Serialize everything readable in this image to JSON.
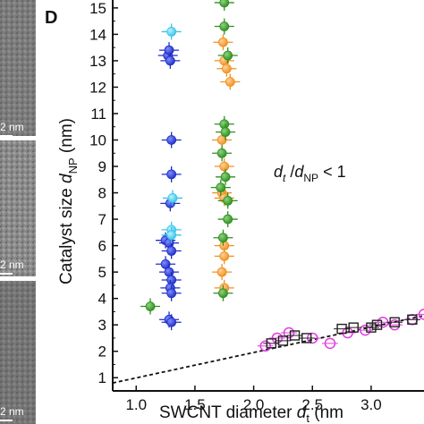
{
  "panel_label": "D",
  "scale_bars": [
    "2 nm",
    "2 nm",
    "2 nm"
  ],
  "annotation": {
    "main": "d",
    "sub": "t",
    "slash": " /",
    "main2": "d",
    "sub2": "NP",
    "tail": " < 1"
  },
  "axis_text": {
    "y_prefix": "Catalyst size ",
    "y_var": "d",
    "y_sub": "NP",
    "y_unit": " (nm)",
    "x_prefix": "SWCNT diameter ",
    "x_var": "d",
    "x_sub": "t",
    "x_unit": " (nm"
  },
  "colors": {
    "blue": "#1f2fc4",
    "cyan": "#37c3e8",
    "orange": "#f0901e",
    "green": "#2e8f1f",
    "magenta": "#e23de0",
    "black": "#222222",
    "image_dark": "#4a4a4a",
    "image_light": "#9c9c9c"
  },
  "chart_data": {
    "type": "scatter",
    "xlim": [
      0.8,
      3.45
    ],
    "ylim": [
      0.5,
      15.3
    ],
    "x_ticks": [
      1.0,
      1.5,
      2.0,
      2.5,
      3.0
    ],
    "x_tick_labels": [
      "1.0",
      "1.5",
      "2.0",
      "2.5",
      "3.0"
    ],
    "y_ticks": [
      1,
      2,
      3,
      4,
      5,
      6,
      7,
      8,
      9,
      10,
      11,
      12,
      13,
      14,
      15
    ],
    "y_tick_labels": [
      "1",
      "2",
      "3",
      "4",
      "5",
      "6",
      "7",
      "8",
      "9",
      "10",
      "11",
      "12",
      "13",
      "14",
      "15"
    ],
    "grid": false,
    "series": [
      {
        "color": "blue",
        "marker": "filled-circle",
        "points": [
          [
            1.27,
            13.2
          ],
          [
            1.28,
            13.4
          ],
          [
            1.29,
            13.0
          ],
          [
            1.3,
            10.0
          ],
          [
            1.3,
            8.7
          ],
          [
            1.29,
            7.6
          ],
          [
            1.25,
            6.2
          ],
          [
            1.28,
            6.1
          ],
          [
            1.3,
            5.8
          ],
          [
            1.25,
            5.3
          ],
          [
            1.28,
            5.0
          ],
          [
            1.3,
            4.7
          ],
          [
            1.29,
            4.4
          ],
          [
            1.3,
            4.2
          ],
          [
            1.28,
            3.2
          ],
          [
            1.3,
            3.1
          ]
        ]
      },
      {
        "color": "cyan",
        "marker": "filled-circle",
        "points": [
          [
            1.3,
            14.1
          ],
          [
            1.31,
            7.8
          ],
          [
            1.3,
            6.6
          ],
          [
            1.3,
            6.4
          ]
        ]
      },
      {
        "color": "orange",
        "marker": "filled-circle",
        "points": [
          [
            1.74,
            13.7
          ],
          [
            1.75,
            13.0
          ],
          [
            1.77,
            12.7
          ],
          [
            1.8,
            12.2
          ],
          [
            1.73,
            10.0
          ],
          [
            1.75,
            9.0
          ],
          [
            1.73,
            8.0
          ],
          [
            1.75,
            7.8
          ],
          [
            1.75,
            6.0
          ],
          [
            1.75,
            5.6
          ],
          [
            1.73,
            5.0
          ],
          [
            1.75,
            4.4
          ]
        ]
      },
      {
        "color": "green",
        "marker": "filled-circle",
        "points": [
          [
            1.75,
            15.2
          ],
          [
            1.75,
            14.3
          ],
          [
            1.78,
            13.2
          ],
          [
            1.75,
            10.6
          ],
          [
            1.76,
            10.3
          ],
          [
            1.73,
            9.5
          ],
          [
            1.76,
            8.6
          ],
          [
            1.72,
            8.2
          ],
          [
            1.78,
            7.7
          ],
          [
            1.78,
            7.0
          ],
          [
            1.74,
            6.3
          ],
          [
            1.74,
            4.2
          ],
          [
            1.12,
            3.7
          ]
        ]
      },
      {
        "color": "magenta",
        "marker": "open-circle",
        "points": [
          [
            2.1,
            2.2
          ],
          [
            2.2,
            2.5
          ],
          [
            2.3,
            2.7
          ],
          [
            2.5,
            2.5
          ],
          [
            2.65,
            2.3
          ],
          [
            2.8,
            2.7
          ],
          [
            2.95,
            2.8
          ],
          [
            3.1,
            3.1
          ],
          [
            3.2,
            3.0
          ],
          [
            3.35,
            3.2
          ],
          [
            3.45,
            3.4
          ]
        ]
      },
      {
        "color": "black",
        "marker": "open-square",
        "points": [
          [
            2.15,
            2.3
          ],
          [
            2.25,
            2.4
          ],
          [
            2.35,
            2.6
          ],
          [
            2.45,
            2.5
          ],
          [
            2.75,
            2.85
          ],
          [
            2.85,
            2.9
          ],
          [
            3.0,
            2.9
          ],
          [
            3.05,
            3.0
          ],
          [
            3.2,
            3.1
          ],
          [
            3.35,
            3.2
          ]
        ]
      }
    ],
    "trend_line": {
      "style": "dashed",
      "points": [
        [
          0.8,
          0.8
        ],
        [
          3.45,
          3.35
        ]
      ]
    }
  }
}
